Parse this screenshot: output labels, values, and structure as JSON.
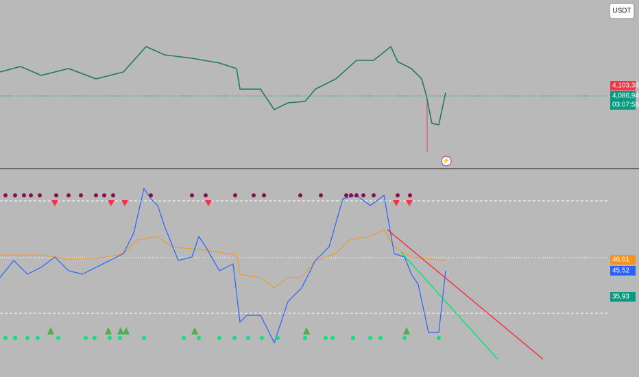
{
  "header": {
    "currency": "USDT"
  },
  "price_pane": {
    "labels": [
      {
        "text": "4,103,34",
        "color": "#f23645"
      },
      {
        "text": "4,086,94",
        "color": "#089981"
      },
      {
        "text": "03:07:58",
        "color": "#089981"
      }
    ]
  },
  "indicator_pane": {
    "labels": [
      {
        "text": "46,01",
        "color": "#f7931a"
      },
      {
        "text": "45,52",
        "color": "#2962ff"
      },
      {
        "text": "35,93",
        "color": "#089981"
      }
    ]
  }
}
